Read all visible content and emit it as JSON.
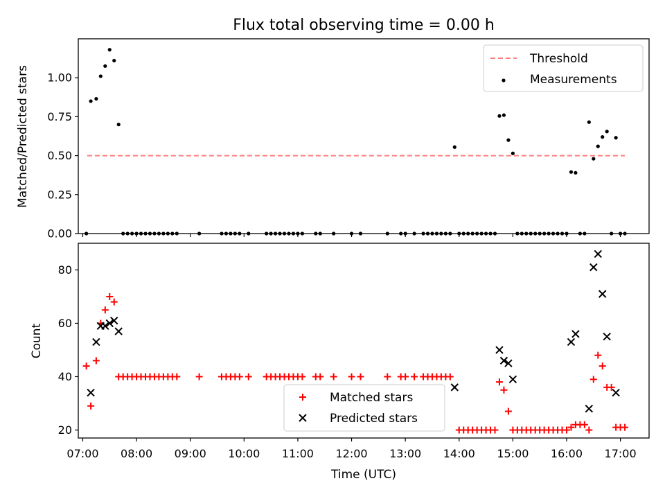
{
  "chart_data": [
    {
      "type": "scatter",
      "title": "Flux total observing time = 0.00 h",
      "xlabel": "",
      "ylabel": "Matched/Predicted stars",
      "xlim": [
        "06:55",
        "17:32"
      ],
      "ylim": [
        0,
        1.25
      ],
      "yticks": [
        "0.00",
        "0.25",
        "0.50",
        "0.75",
        "1.00"
      ],
      "grid": false,
      "legend_position": "upper right",
      "threshold": {
        "name": "Threshold",
        "color": "#ff7f7f",
        "style": "dashed",
        "y": 0.5,
        "x_from": "07:05",
        "x_to": "17:05"
      },
      "series": [
        {
          "name": "Measurements",
          "color": "#000000",
          "marker": "dot",
          "points": [
            [
              "07:04",
              0
            ],
            [
              "07:09",
              0.85
            ],
            [
              "07:15",
              0.865
            ],
            [
              "07:20",
              1.01
            ],
            [
              "07:25",
              1.075
            ],
            [
              "07:30",
              1.18
            ],
            [
              "07:35",
              1.11
            ],
            [
              "07:40",
              0.7
            ],
            [
              "07:45",
              0
            ],
            [
              "07:50",
              0
            ],
            [
              "07:55",
              0
            ],
            [
              "08:00",
              0
            ],
            [
              "08:05",
              0
            ],
            [
              "08:10",
              0
            ],
            [
              "08:15",
              0
            ],
            [
              "08:20",
              0
            ],
            [
              "08:25",
              0
            ],
            [
              "08:30",
              0
            ],
            [
              "08:35",
              0
            ],
            [
              "08:40",
              0
            ],
            [
              "08:45",
              0
            ],
            [
              "09:10",
              0
            ],
            [
              "09:35",
              0
            ],
            [
              "09:40",
              0
            ],
            [
              "09:45",
              0
            ],
            [
              "09:50",
              0
            ],
            [
              "09:55",
              0
            ],
            [
              "10:05",
              0
            ],
            [
              "10:25",
              0
            ],
            [
              "10:30",
              0
            ],
            [
              "10:35",
              0
            ],
            [
              "10:40",
              0
            ],
            [
              "10:45",
              0
            ],
            [
              "10:50",
              0
            ],
            [
              "10:55",
              0
            ],
            [
              "11:00",
              0
            ],
            [
              "11:05",
              0
            ],
            [
              "11:20",
              0
            ],
            [
              "11:25",
              0
            ],
            [
              "11:40",
              0
            ],
            [
              "12:00",
              0
            ],
            [
              "12:10",
              0
            ],
            [
              "12:40",
              0
            ],
            [
              "12:55",
              0
            ],
            [
              "13:00",
              0
            ],
            [
              "13:10",
              0
            ],
            [
              "13:20",
              0
            ],
            [
              "13:25",
              0
            ],
            [
              "13:30",
              0
            ],
            [
              "13:35",
              0
            ],
            [
              "13:40",
              0
            ],
            [
              "13:45",
              0
            ],
            [
              "13:50",
              0
            ],
            [
              "13:55",
              0.555
            ],
            [
              "14:00",
              0
            ],
            [
              "14:05",
              0
            ],
            [
              "14:10",
              0
            ],
            [
              "14:15",
              0
            ],
            [
              "14:20",
              0
            ],
            [
              "14:25",
              0
            ],
            [
              "14:30",
              0
            ],
            [
              "14:35",
              0
            ],
            [
              "14:40",
              0
            ],
            [
              "14:45",
              0.755
            ],
            [
              "14:50",
              0.76
            ],
            [
              "14:55",
              0.6
            ],
            [
              "15:00",
              0.515
            ],
            [
              "15:05",
              0
            ],
            [
              "15:10",
              0
            ],
            [
              "15:15",
              0
            ],
            [
              "15:20",
              0
            ],
            [
              "15:25",
              0
            ],
            [
              "15:30",
              0
            ],
            [
              "15:35",
              0
            ],
            [
              "15:40",
              0
            ],
            [
              "15:45",
              0
            ],
            [
              "15:50",
              0
            ],
            [
              "15:55",
              0
            ],
            [
              "16:00",
              0
            ],
            [
              "16:05",
              0.395
            ],
            [
              "16:10",
              0.39
            ],
            [
              "16:15",
              0
            ],
            [
              "16:20",
              0
            ],
            [
              "16:25",
              0.715
            ],
            [
              "16:30",
              0.48
            ],
            [
              "16:35",
              0.56
            ],
            [
              "16:40",
              0.62
            ],
            [
              "16:45",
              0.655
            ],
            [
              "16:50",
              0
            ],
            [
              "16:55",
              0.615
            ],
            [
              "17:00",
              0
            ],
            [
              "17:05",
              0
            ]
          ]
        }
      ]
    },
    {
      "type": "scatter",
      "title": "",
      "xlabel": "Time (UTC)",
      "ylabel": "Count",
      "xlim": [
        "06:55",
        "17:32"
      ],
      "xticks": [
        "07:00",
        "08:00",
        "09:00",
        "10:00",
        "11:00",
        "12:00",
        "13:00",
        "14:00",
        "15:00",
        "16:00",
        "17:00"
      ],
      "ylim": [
        17,
        90
      ],
      "yticks": [
        "20",
        "40",
        "60",
        "80"
      ],
      "grid": false,
      "legend_position": "lower center",
      "series": [
        {
          "name": "Matched stars",
          "color": "#ff0000",
          "marker": "plus",
          "points": [
            [
              "07:04",
              44
            ],
            [
              "07:09",
              29
            ],
            [
              "07:15",
              46
            ],
            [
              "07:20",
              60
            ],
            [
              "07:25",
              65
            ],
            [
              "07:30",
              70
            ],
            [
              "07:35",
              68
            ],
            [
              "07:40",
              40
            ],
            [
              "07:45",
              40
            ],
            [
              "07:50",
              40
            ],
            [
              "07:55",
              40
            ],
            [
              "08:00",
              40
            ],
            [
              "08:05",
              40
            ],
            [
              "08:10",
              40
            ],
            [
              "08:15",
              40
            ],
            [
              "08:20",
              40
            ],
            [
              "08:25",
              40
            ],
            [
              "08:30",
              40
            ],
            [
              "08:35",
              40
            ],
            [
              "08:40",
              40
            ],
            [
              "08:45",
              40
            ],
            [
              "09:10",
              40
            ],
            [
              "09:35",
              40
            ],
            [
              "09:40",
              40
            ],
            [
              "09:45",
              40
            ],
            [
              "09:50",
              40
            ],
            [
              "09:55",
              40
            ],
            [
              "10:05",
              40
            ],
            [
              "10:25",
              40
            ],
            [
              "10:30",
              40
            ],
            [
              "10:35",
              40
            ],
            [
              "10:40",
              40
            ],
            [
              "10:45",
              40
            ],
            [
              "10:50",
              40
            ],
            [
              "10:55",
              40
            ],
            [
              "11:00",
              40
            ],
            [
              "11:05",
              40
            ],
            [
              "11:20",
              40
            ],
            [
              "11:25",
              40
            ],
            [
              "11:40",
              40
            ],
            [
              "12:00",
              40
            ],
            [
              "12:10",
              40
            ],
            [
              "12:40",
              40
            ],
            [
              "12:55",
              40
            ],
            [
              "13:00",
              40
            ],
            [
              "13:10",
              40
            ],
            [
              "13:20",
              40
            ],
            [
              "13:25",
              40
            ],
            [
              "13:30",
              40
            ],
            [
              "13:35",
              40
            ],
            [
              "13:40",
              40
            ],
            [
              "13:45",
              40
            ],
            [
              "13:50",
              40
            ],
            [
              "14:00",
              20
            ],
            [
              "14:05",
              20
            ],
            [
              "14:10",
              20
            ],
            [
              "14:15",
              20
            ],
            [
              "14:20",
              20
            ],
            [
              "14:25",
              20
            ],
            [
              "14:30",
              20
            ],
            [
              "14:35",
              20
            ],
            [
              "14:40",
              20
            ],
            [
              "14:45",
              38
            ],
            [
              "14:50",
              35
            ],
            [
              "14:55",
              27
            ],
            [
              "15:00",
              20
            ],
            [
              "15:05",
              20
            ],
            [
              "15:10",
              20
            ],
            [
              "15:15",
              20
            ],
            [
              "15:20",
              20
            ],
            [
              "15:25",
              20
            ],
            [
              "15:30",
              20
            ],
            [
              "15:35",
              20
            ],
            [
              "15:40",
              20
            ],
            [
              "15:45",
              20
            ],
            [
              "15:50",
              20
            ],
            [
              "15:55",
              20
            ],
            [
              "16:00",
              20
            ],
            [
              "16:05",
              21
            ],
            [
              "16:10",
              22
            ],
            [
              "16:15",
              22
            ],
            [
              "16:20",
              22
            ],
            [
              "16:25",
              20
            ],
            [
              "16:30",
              39
            ],
            [
              "16:35",
              48
            ],
            [
              "16:40",
              44
            ],
            [
              "16:45",
              36
            ],
            [
              "16:50",
              36
            ],
            [
              "16:55",
              21
            ],
            [
              "17:00",
              21
            ],
            [
              "17:05",
              21
            ]
          ]
        },
        {
          "name": "Predicted stars",
          "color": "#000000",
          "marker": "x",
          "points": [
            [
              "07:09",
              34
            ],
            [
              "07:15",
              53
            ],
            [
              "07:20",
              59
            ],
            [
              "07:25",
              59
            ],
            [
              "07:30",
              60
            ],
            [
              "07:35",
              61
            ],
            [
              "07:40",
              57
            ],
            [
              "13:55",
              36
            ],
            [
              "14:45",
              50
            ],
            [
              "14:50",
              46
            ],
            [
              "14:55",
              45
            ],
            [
              "15:00",
              39
            ],
            [
              "16:05",
              53
            ],
            [
              "16:10",
              56
            ],
            [
              "16:25",
              28
            ],
            [
              "16:30",
              81
            ],
            [
              "16:35",
              86
            ],
            [
              "16:40",
              71
            ],
            [
              "16:45",
              55
            ],
            [
              "16:55",
              34
            ]
          ]
        }
      ]
    }
  ]
}
